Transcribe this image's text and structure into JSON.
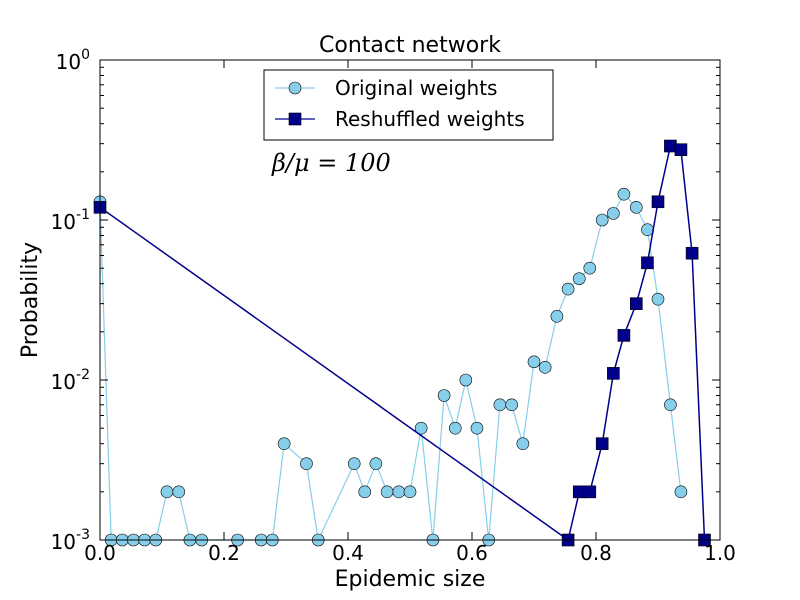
{
  "chart_data": {
    "type": "line",
    "title": "Contact network",
    "xlabel": "Epidemic size",
    "ylabel": "Probability",
    "xlim": [
      0,
      1
    ],
    "ylim": [
      0.001,
      1
    ],
    "yscale": "log",
    "xticks": [
      0.0,
      0.2,
      0.4,
      0.6,
      0.8,
      1.0
    ],
    "xtick_labels": [
      "0.0",
      "0.2",
      "0.4",
      "0.6",
      "0.8",
      "1.0"
    ],
    "yticks": [
      {
        "base": "10",
        "exp": "0",
        "value": 1
      },
      {
        "base": "10",
        "exp": "-1",
        "value": 0.1
      },
      {
        "base": "10",
        "exp": "-2",
        "value": 0.01
      },
      {
        "base": "10",
        "exp": "-3",
        "value": 0.001
      }
    ],
    "legend_position": "top-center",
    "annotation": "β/μ = 100",
    "series": [
      {
        "name": "Original weights",
        "color": "#87CEEB",
        "marker": "circle",
        "x": [
          0.0,
          0.018,
          0.036,
          0.054,
          0.072,
          0.09,
          0.108,
          0.127,
          0.145,
          0.164,
          0.222,
          0.26,
          0.278,
          0.297,
          0.333,
          0.352,
          0.41,
          0.427,
          0.445,
          0.463,
          0.482,
          0.5,
          0.518,
          0.537,
          0.555,
          0.573,
          0.59,
          0.608,
          0.627,
          0.645,
          0.664,
          0.682,
          0.7,
          0.718,
          0.737,
          0.755,
          0.773,
          0.79,
          0.81,
          0.828,
          0.845,
          0.865,
          0.883,
          0.9,
          0.92,
          0.937
        ],
        "y": [
          0.13,
          0.001,
          0.001,
          0.001,
          0.001,
          0.001,
          0.002,
          0.002,
          0.001,
          0.001,
          0.001,
          0.001,
          0.001,
          0.004,
          0.003,
          0.001,
          0.003,
          0.002,
          0.003,
          0.002,
          0.002,
          0.002,
          0.005,
          0.001,
          0.008,
          0.005,
          0.01,
          0.005,
          0.001,
          0.007,
          0.007,
          0.004,
          0.013,
          0.012,
          0.025,
          0.037,
          0.043,
          0.05,
          0.1,
          0.11,
          0.145,
          0.12,
          0.087,
          0.032,
          0.007,
          0.002
        ]
      },
      {
        "name": "Reshuffled weights",
        "color": "#00008B",
        "marker": "square",
        "x": [
          0.0,
          0.755,
          0.773,
          0.79,
          0.81,
          0.828,
          0.845,
          0.865,
          0.883,
          0.9,
          0.92,
          0.937,
          0.955,
          0.975
        ],
        "y": [
          0.12,
          0.001,
          0.002,
          0.002,
          0.004,
          0.011,
          0.019,
          0.03,
          0.054,
          0.13,
          0.29,
          0.275,
          0.062,
          0.001
        ]
      }
    ]
  }
}
